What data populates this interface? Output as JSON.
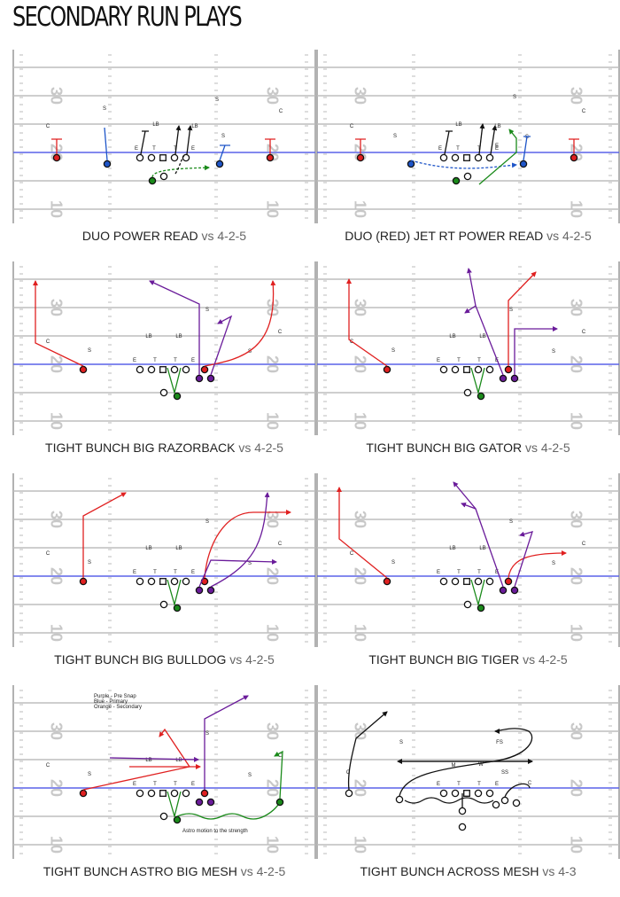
{
  "title": "SECONDARY RUN PLAYS",
  "colors": {
    "red": "#e02020",
    "blue": "#1e55c8",
    "green": "#1a8a1a",
    "purple": "#6a1b9a",
    "orange": "#e05a10",
    "field_line": "#bdbdbd",
    "los": "#5a62e8",
    "text": "#222222",
    "yard": "#c8c8c8"
  },
  "yard_labels": [
    "30",
    "20",
    "10"
  ],
  "panels": [
    {
      "id": "duo-power-read",
      "name": "DUO POWER READ",
      "vs": "vs 4-2-5",
      "linemen": [
        "E",
        "T",
        "T",
        "E"
      ],
      "defense": [
        "C",
        "S",
        "S",
        "LB",
        "LB",
        "S",
        "C"
      ]
    },
    {
      "id": "duo-red-jet-rt",
      "name": "DUO (RED) JET RT POWER READ",
      "vs": "vs 4-2-5",
      "linemen": [
        "E",
        "T",
        "T",
        "E"
      ],
      "defense": [
        "C",
        "S",
        "LB",
        "LB",
        "S",
        "S",
        "C"
      ]
    },
    {
      "id": "tight-bunch-big-razorback",
      "name": "TIGHT BUNCH BIG RAZORBACK",
      "vs": "vs 4-2-5",
      "linemen": [
        "E",
        "T",
        "T",
        "E"
      ],
      "defense": [
        "C",
        "S",
        "LB",
        "LB",
        "S",
        "S",
        "C"
      ]
    },
    {
      "id": "tight-bunch-big-gator",
      "name": "TIGHT BUNCH BIG GATOR",
      "vs": "vs 4-2-5",
      "linemen": [
        "E",
        "T",
        "T",
        "E"
      ],
      "defense": [
        "C",
        "S",
        "LB",
        "LB",
        "S",
        "S",
        "C"
      ]
    },
    {
      "id": "tight-bunch-big-bulldog",
      "name": "TIGHT BUNCH BIG BULLDOG",
      "vs": "vs 4-2-5",
      "linemen": [
        "E",
        "T",
        "T",
        "E"
      ],
      "defense": [
        "C",
        "S",
        "LB",
        "LB",
        "S",
        "S",
        "C"
      ]
    },
    {
      "id": "tight-bunch-big-tiger",
      "name": "TIGHT BUNCH BIG TIGER",
      "vs": "vs 4-2-5",
      "linemen": [
        "E",
        "T",
        "T",
        "E"
      ],
      "defense": [
        "C",
        "S",
        "LB",
        "LB",
        "S",
        "S",
        "C"
      ]
    },
    {
      "id": "tight-bunch-astro-big-mesh",
      "name": "TIGHT BUNCH ASTRO BIG MESH",
      "vs": "vs 4-2-5",
      "linemen": [
        "E",
        "T",
        "T",
        "E"
      ],
      "defense": [
        "C",
        "S",
        "LB",
        "LB",
        "S",
        "S",
        "C"
      ],
      "legend": [
        "Purple - Pre Snap",
        "Blue - Primary",
        "Orange - Secondary"
      ],
      "note": "Astro motion to the strength"
    },
    {
      "id": "tight-bunch-across-mesh",
      "name": "TIGHT BUNCH ACROSS MESH",
      "vs": "vs 4-3",
      "linemen": [
        "E",
        "T",
        "T",
        "E"
      ],
      "defense": [
        "C",
        "S",
        "FS",
        "M",
        "W",
        "SS",
        "C"
      ]
    }
  ]
}
